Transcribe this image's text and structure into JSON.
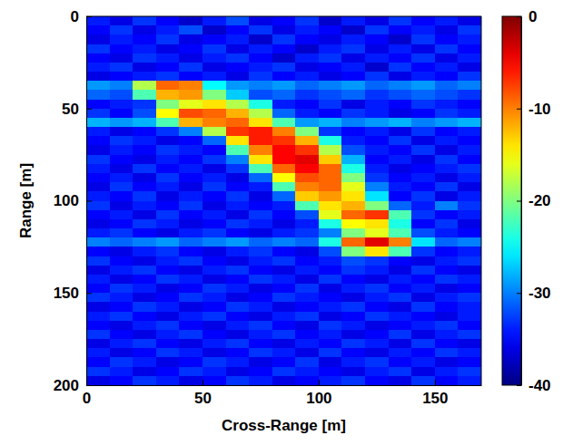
{
  "chart_data": {
    "type": "heatmap",
    "x_label": "Cross-Range [m]",
    "y_label": "Range [m]",
    "xlim": [
      0,
      170
    ],
    "ylim": [
      0,
      200
    ],
    "xticks": [
      0,
      50,
      100,
      150
    ],
    "yticks": [
      0,
      50,
      100,
      150,
      200
    ],
    "x": [
      5,
      15,
      25,
      35,
      45,
      55,
      65,
      75,
      85,
      95,
      105,
      115,
      125,
      135,
      145,
      155,
      165
    ],
    "y": [
      2.5,
      7.5,
      12.5,
      17.5,
      22.5,
      27.5,
      32.5,
      37.5,
      42.5,
      47.5,
      52.5,
      57.5,
      62.5,
      67.5,
      72.5,
      77.5,
      82.5,
      87.5,
      92.5,
      97.5,
      102.5,
      107.5,
      112.5,
      117.5,
      122.5,
      127.5,
      132.5,
      137.5,
      142.5,
      147.5,
      152.5,
      157.5,
      162.5,
      167.5,
      172.5,
      177.5,
      182.5,
      187.5,
      192.5,
      197.5
    ],
    "values": [
      [
        -34,
        -36,
        -33,
        -35,
        -37,
        -34,
        -32,
        -36,
        -35,
        -33,
        -37,
        -34,
        -36,
        -33,
        -35,
        -34,
        -36
      ],
      [
        -35,
        -33,
        -36,
        -34,
        -32,
        -37,
        -35,
        -33,
        -36,
        -34,
        -35,
        -37,
        -33,
        -35,
        -34,
        -36,
        -33
      ],
      [
        -36,
        -34,
        -35,
        -33,
        -36,
        -35,
        -34,
        -37,
        -33,
        -35,
        -36,
        -34,
        -35,
        -37,
        -33,
        -35,
        -34
      ],
      [
        -33,
        -35,
        -34,
        -36,
        -35,
        -33,
        -36,
        -34,
        -35,
        -37,
        -34,
        -33,
        -36,
        -34,
        -36,
        -33,
        -35
      ],
      [
        -35,
        -36,
        -33,
        -34,
        -36,
        -34,
        -33,
        -35,
        -37,
        -34,
        -33,
        -36,
        -34,
        -35,
        -33,
        -36,
        -34
      ],
      [
        -34,
        -33,
        -36,
        -35,
        -33,
        -36,
        -35,
        -34,
        -33,
        -36,
        -35,
        -34,
        -37,
        -33,
        -35,
        -34,
        -36
      ],
      [
        -36,
        -35,
        -34,
        -33,
        -35,
        -34,
        -36,
        -33,
        -35,
        -34,
        -36,
        -35,
        -33,
        -36,
        -34,
        -35,
        -33
      ],
      [
        -29,
        -30,
        -18,
        -9,
        -10,
        -25,
        -29,
        -30,
        -29,
        -31,
        -30,
        -29,
        -31,
        -30,
        -29,
        -31,
        -30
      ],
      [
        -31,
        -32,
        -22,
        -12,
        -11,
        -20,
        -27,
        -32,
        -31,
        -33,
        -32,
        -31,
        -33,
        -32,
        -31,
        -32,
        -33
      ],
      [
        -35,
        -34,
        -33,
        -20,
        -16,
        -14,
        -18,
        -24,
        -34,
        -35,
        -33,
        -36,
        -34,
        -35,
        -33,
        -34,
        -35
      ],
      [
        -33,
        -35,
        -32,
        -15,
        -8,
        -9,
        -12,
        -18,
        -31,
        -34,
        -35,
        -33,
        -34,
        -36,
        -35,
        -33,
        -34
      ],
      [
        -28,
        -29,
        -28,
        -22,
        -12,
        -10,
        -9,
        -14,
        -22,
        -29,
        -28,
        -30,
        -29,
        -28,
        -30,
        -29,
        -28
      ],
      [
        -34,
        -36,
        -35,
        -33,
        -30,
        -18,
        -7,
        -6,
        -10,
        -20,
        -33,
        -35,
        -34,
        -36,
        -33,
        -35,
        -34
      ],
      [
        -35,
        -33,
        -34,
        -36,
        -35,
        -31,
        -14,
        -6,
        -7,
        -12,
        -24,
        -34,
        -35,
        -33,
        -36,
        -34,
        -35
      ],
      [
        -36,
        -34,
        -35,
        -33,
        -34,
        -35,
        -22,
        -10,
        -5,
        -7,
        -18,
        -32,
        -34,
        -35,
        -33,
        -36,
        -34
      ],
      [
        -33,
        -35,
        -36,
        -34,
        -35,
        -33,
        -30,
        -14,
        -5,
        -4,
        -13,
        -28,
        -35,
        -34,
        -36,
        -33,
        -35
      ],
      [
        -34,
        -36,
        -33,
        -35,
        -34,
        -36,
        -33,
        -22,
        -9,
        -5,
        -9,
        -24,
        -34,
        -36,
        -35,
        -34,
        -33
      ],
      [
        -35,
        -34,
        -36,
        -33,
        -35,
        -34,
        -36,
        -31,
        -15,
        -8,
        -9,
        -20,
        -33,
        -35,
        -34,
        -36,
        -34
      ],
      [
        -36,
        -33,
        -35,
        -34,
        -36,
        -33,
        -35,
        -34,
        -22,
        -10,
        -9,
        -16,
        -30,
        -34,
        -35,
        -33,
        -36
      ],
      [
        -34,
        -35,
        -33,
        -36,
        -34,
        -35,
        -33,
        -36,
        -31,
        -13,
        -11,
        -14,
        -26,
        -35,
        -33,
        -36,
        -34
      ],
      [
        -33,
        -36,
        -34,
        -35,
        -33,
        -36,
        -34,
        -35,
        -34,
        -22,
        -14,
        -12,
        -20,
        -31,
        -34,
        -30,
        -33
      ],
      [
        -35,
        -34,
        -36,
        -33,
        -35,
        -34,
        -36,
        -33,
        -35,
        -32,
        -16,
        -9,
        -7,
        -22,
        -33,
        -35,
        -34
      ],
      [
        -36,
        -35,
        -33,
        -34,
        -36,
        -35,
        -33,
        -34,
        -36,
        -34,
        -24,
        -15,
        -14,
        -24,
        -35,
        -33,
        -36
      ],
      [
        -34,
        -33,
        -35,
        -36,
        -34,
        -33,
        -35,
        -36,
        -34,
        -33,
        -30,
        -20,
        -16,
        -22,
        -32,
        -34,
        -35
      ],
      [
        -30,
        -31,
        -30,
        -29,
        -31,
        -30,
        -29,
        -31,
        -30,
        -31,
        -24,
        -9,
        -4,
        -10,
        -26,
        -31,
        -30
      ],
      [
        -35,
        -36,
        -34,
        -33,
        -35,
        -36,
        -34,
        -33,
        -35,
        -36,
        -32,
        -20,
        -14,
        -22,
        -33,
        -35,
        -34
      ],
      [
        -33,
        -35,
        -36,
        -34,
        -33,
        -35,
        -36,
        -34,
        -33,
        -35,
        -34,
        -32,
        -33,
        -35,
        -36,
        -34,
        -33
      ],
      [
        -36,
        -34,
        -33,
        -35,
        -36,
        -34,
        -33,
        -35,
        -36,
        -34,
        -35,
        -33,
        -34,
        -36,
        -33,
        -35,
        -36
      ],
      [
        -34,
        -36,
        -35,
        -33,
        -34,
        -36,
        -35,
        -33,
        -34,
        -36,
        -33,
        -35,
        -36,
        -34,
        -35,
        -33,
        -34
      ],
      [
        -35,
        -33,
        -34,
        -36,
        -35,
        -33,
        -34,
        -36,
        -35,
        -33,
        -36,
        -34,
        -33,
        -35,
        -34,
        -36,
        -35
      ],
      [
        -33,
        -34,
        -36,
        -35,
        -33,
        -34,
        -36,
        -35,
        -33,
        -34,
        -35,
        -36,
        -34,
        -33,
        -36,
        -34,
        -33
      ],
      [
        -36,
        -35,
        -33,
        -34,
        -36,
        -35,
        -33,
        -34,
        -36,
        -35,
        -34,
        -33,
        -35,
        -36,
        -33,
        -35,
        -34
      ],
      [
        -34,
        -33,
        -35,
        -36,
        -34,
        -33,
        -35,
        -36,
        -34,
        -33,
        -36,
        -35,
        -33,
        -34,
        -35,
        -36,
        -34
      ],
      [
        -35,
        -36,
        -34,
        -33,
        -35,
        -36,
        -34,
        -33,
        -35,
        -36,
        -33,
        -34,
        -36,
        -35,
        -34,
        -33,
        -35
      ],
      [
        -33,
        -35,
        -36,
        -34,
        -33,
        -35,
        -36,
        -34,
        -33,
        -35,
        -34,
        -36,
        -35,
        -33,
        -36,
        -34,
        -33
      ],
      [
        -36,
        -34,
        -33,
        -35,
        -36,
        -34,
        -33,
        -35,
        -36,
        -34,
        -35,
        -33,
        -34,
        -36,
        -33,
        -35,
        -36
      ],
      [
        -34,
        -36,
        -35,
        -33,
        -34,
        -36,
        -35,
        -33,
        -34,
        -36,
        -33,
        -35,
        -36,
        -34,
        -35,
        -33,
        -34
      ],
      [
        -35,
        -33,
        -34,
        -36,
        -35,
        -33,
        -34,
        -36,
        -35,
        -33,
        -36,
        -34,
        -33,
        -35,
        -34,
        -36,
        -35
      ],
      [
        -33,
        -34,
        -36,
        -35,
        -33,
        -34,
        -36,
        -35,
        -33,
        -34,
        -35,
        -36,
        -34,
        -33,
        -36,
        -34,
        -33
      ],
      [
        -36,
        -35,
        -33,
        -34,
        -36,
        -35,
        -33,
        -34,
        -36,
        -35,
        -34,
        -33,
        -35,
        -36,
        -33,
        -35,
        -34
      ]
    ],
    "colorbar": {
      "range": [
        -40,
        0
      ],
      "ticks": [
        0,
        -10,
        -20,
        -30,
        -40
      ]
    }
  }
}
